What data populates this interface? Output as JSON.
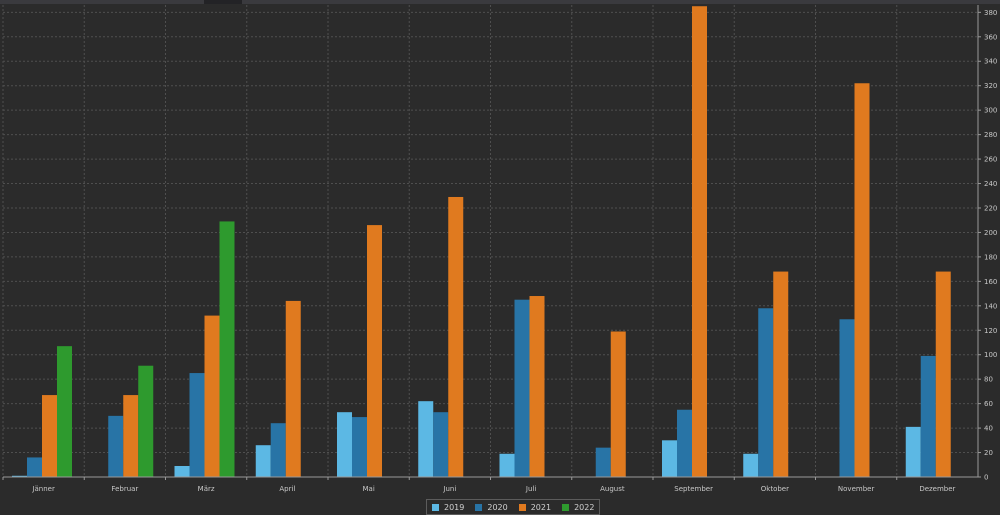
{
  "chart_data": {
    "type": "bar",
    "categories": [
      "Jänner",
      "Februar",
      "März",
      "April",
      "Mai",
      "Juni",
      "Juli",
      "August",
      "September",
      "Oktober",
      "November",
      "Dezember"
    ],
    "series": [
      {
        "name": "2019",
        "color": "#5cb8e4",
        "values": [
          1,
          0,
          9,
          26,
          53,
          62,
          19,
          0,
          30,
          19,
          0,
          41
        ]
      },
      {
        "name": "2020",
        "color": "#2874a6",
        "values": [
          16,
          50,
          85,
          44,
          49,
          53,
          145,
          24,
          55,
          138,
          129,
          99
        ]
      },
      {
        "name": "2021",
        "color": "#e07a1f",
        "values": [
          67,
          67,
          132,
          144,
          206,
          229,
          148,
          119,
          385,
          168,
          322,
          168
        ]
      },
      {
        "name": "2022",
        "color": "#2e9a2e",
        "values": [
          107,
          91,
          209,
          null,
          null,
          null,
          null,
          null,
          null,
          null,
          null,
          null
        ]
      }
    ],
    "y_ticks": [
      "0",
      "20",
      "40",
      "60",
      "80",
      "100",
      "120",
      "140",
      "160",
      "180",
      "200",
      "220",
      "240",
      "260",
      "280",
      "300",
      "320",
      "340",
      "360",
      "380"
    ],
    "ylim": [
      0,
      386
    ],
    "y_axis_side": "right",
    "grid": true,
    "legend_position": "bottom-center"
  },
  "colors": {
    "background": "#2b2b2b",
    "grid": "#4f4f4f",
    "axis": "#9a9a9a",
    "text": "#c8c8c8"
  }
}
